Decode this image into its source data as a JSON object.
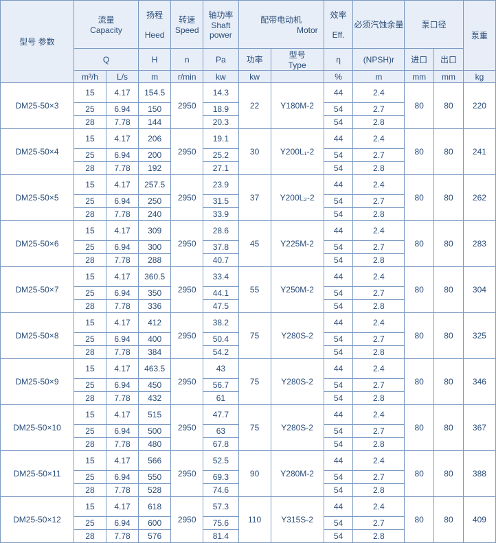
{
  "header": {
    "model_param": "型号       参数",
    "capacity_cn": "流量",
    "capacity_en": "Capacity",
    "head_cn": "扬程",
    "head_en": "Heed",
    "speed_cn": "转速",
    "speed_en": "Speed",
    "shaft_cn": "轴功率",
    "shaft_en": "Shaft power",
    "motor_cn": "配带电动机",
    "motor_en": "Motor",
    "eff_cn": "效率",
    "eff_en": "Eff.",
    "npsh_cn": "必须汽蚀余量",
    "dia_cn": "泵口径",
    "weight_cn": "泵重",
    "q": "Q",
    "h": "H",
    "n": "n",
    "pa": "Pa",
    "power": "功率",
    "type_cn": "型号",
    "type_en": "Type",
    "eta": "η",
    "npshr": "(NPSH)r",
    "inlet": "进口",
    "outlet": "出口",
    "u_m3h": "m³/h",
    "u_ls": "L/s",
    "u_m": "m",
    "u_rmin": "r/min",
    "u_kw": "kw",
    "u_kw2": "kw",
    "u_pct": "%",
    "u_m2": "m",
    "u_mm": "mm",
    "u_mm2": "mm",
    "u_kg": "kg"
  },
  "common": {
    "q_m3h": [
      "15",
      "25",
      "28"
    ],
    "q_ls": [
      "4.17",
      "6.94",
      "7.78"
    ],
    "speed": "2950",
    "eff": [
      "44",
      "54",
      "54"
    ],
    "npsh": [
      "2.4",
      "2.7",
      "2.8"
    ],
    "inlet": "80",
    "outlet": "80"
  },
  "rows": [
    {
      "model": "DM25-50×3",
      "head": [
        "154.5",
        "150",
        "144"
      ],
      "shaft": [
        "14.3",
        "18.9",
        "20.3"
      ],
      "mkw": "22",
      "mtype": "Y180M-2",
      "weight": "220"
    },
    {
      "model": "DM25-50×4",
      "head": [
        "206",
        "200",
        "192"
      ],
      "shaft": [
        "19.1",
        "25.2",
        "27.1"
      ],
      "mkw": "30",
      "mtype": "Y200L₁-2",
      "weight": "241"
    },
    {
      "model": "DM25-50×5",
      "head": [
        "257.5",
        "250",
        "240"
      ],
      "shaft": [
        "23.9",
        "31.5",
        "33.9"
      ],
      "mkw": "37",
      "mtype": "Y200L₂-2",
      "weight": "262"
    },
    {
      "model": "DM25-50×6",
      "head": [
        "309",
        "300",
        "288"
      ],
      "shaft": [
        "28.6",
        "37.8",
        "40.7"
      ],
      "mkw": "45",
      "mtype": "Y225M-2",
      "weight": "283"
    },
    {
      "model": "DM25-50×7",
      "head": [
        "360.5",
        "350",
        "336"
      ],
      "shaft": [
        "33.4",
        "44.1",
        "47.5"
      ],
      "mkw": "55",
      "mtype": "Y250M-2",
      "weight": "304"
    },
    {
      "model": "DM25-50×8",
      "head": [
        "412",
        "400",
        "384"
      ],
      "shaft": [
        "38.2",
        "50.4",
        "54.2"
      ],
      "mkw": "75",
      "mtype": "Y280S-2",
      "weight": "325"
    },
    {
      "model": "DM25-50×9",
      "head": [
        "463.5",
        "450",
        "432"
      ],
      "shaft": [
        "43",
        "56.7",
        "61"
      ],
      "mkw": "75",
      "mtype": "Y280S-2",
      "weight": "346"
    },
    {
      "model": "DM25-50×10",
      "head": [
        "515",
        "500",
        "480"
      ],
      "shaft": [
        "47.7",
        "63",
        "67.8"
      ],
      "mkw": "75",
      "mtype": "Y280S-2",
      "weight": "367"
    },
    {
      "model": "DM25-50×11",
      "head": [
        "566",
        "550",
        "528"
      ],
      "shaft": [
        "52.5",
        "69.3",
        "74.6"
      ],
      "mkw": "90",
      "mtype": "Y280M-2",
      "weight": "388"
    },
    {
      "model": "DM25-50×12",
      "head": [
        "618",
        "600",
        "576"
      ],
      "shaft": [
        "57.3",
        "75.6",
        "81.4"
      ],
      "mkw": "110",
      "mtype": "Y315S-2",
      "weight": "409"
    }
  ],
  "style": {
    "border_color": "#7a99c2",
    "header_bg": "#e8eef7",
    "text_color": "#2a4d7a",
    "font_size_pt": 9
  }
}
